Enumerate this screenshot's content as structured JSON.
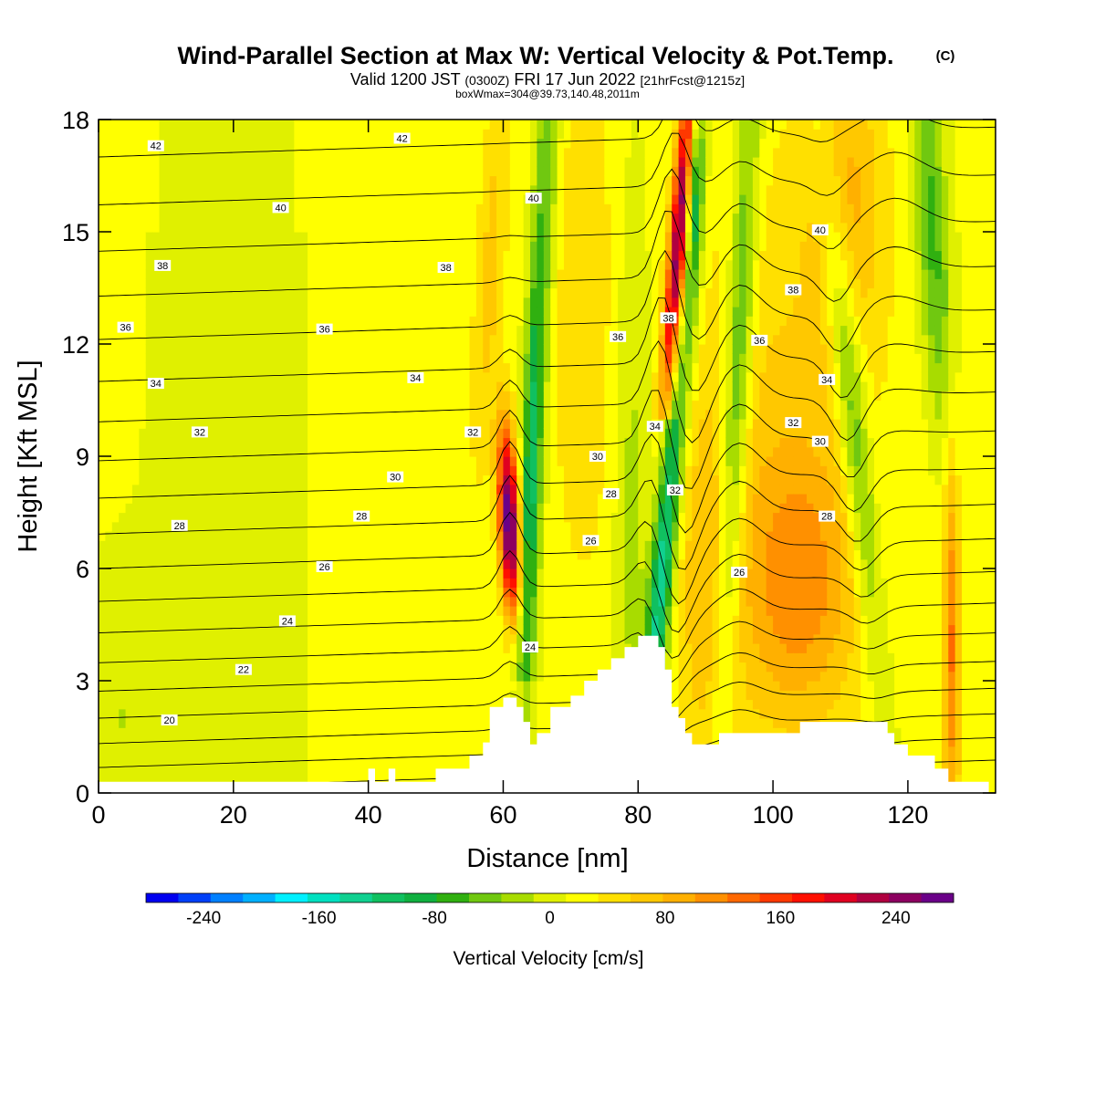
{
  "title": {
    "main": "Wind-Parallel Section at Max W: Vertical Velocity & Pot.Temp.",
    "main_mark": "(C)",
    "valid_prefix": "Valid 1200 JST",
    "valid_utc": "(0300Z)",
    "valid_date": "FRI 17 Jun 2022",
    "forecast": "[21hrFcst@1215z]",
    "box": "boxWmax=304@39.73,140.48,2011m"
  },
  "chart_data": {
    "type": "heatmap",
    "xlabel": "Distance [nm]",
    "ylabel": "Height [Kft MSL]",
    "xlim": [
      0,
      133
    ],
    "ylim": [
      0,
      18
    ],
    "x_ticks": [
      "0",
      "20",
      "40",
      "60",
      "80",
      "100",
      "120"
    ],
    "x_tick_values": [
      0,
      20,
      40,
      60,
      80,
      100,
      120
    ],
    "y_ticks": [
      "0",
      "3",
      "6",
      "9",
      "12",
      "15",
      "18"
    ],
    "y_tick_values": [
      0,
      3,
      6,
      9,
      12,
      15,
      18
    ],
    "colorbar": {
      "title": "Vertical Velocity [cm/s]",
      "labels": [
        "-240",
        "-160",
        "-80",
        "0",
        "80",
        "160",
        "240"
      ],
      "label_values": [
        -240,
        -160,
        -80,
        0,
        80,
        160,
        240
      ],
      "range": [
        -280,
        280
      ],
      "colors": [
        "#0000f0",
        "#0040f8",
        "#0080ff",
        "#00b0ff",
        "#00f0ff",
        "#00e0c0",
        "#10d090",
        "#10c060",
        "#10b040",
        "#30b010",
        "#70c810",
        "#a8dc00",
        "#e0f000",
        "#ffff00",
        "#ffe000",
        "#ffc800",
        "#ffb000",
        "#ff9000",
        "#ff6800",
        "#ff3800",
        "#ff1000",
        "#e00020",
        "#b00040",
        "#8c0060",
        "#6a0088"
      ]
    },
    "contour_labels": [
      {
        "text": "42",
        "x": 8.5,
        "y": 17.3
      },
      {
        "text": "42",
        "x": 45,
        "y": 17.5
      },
      {
        "text": "40",
        "x": 27,
        "y": 15.65
      },
      {
        "text": "40",
        "x": 64.5,
        "y": 15.9
      },
      {
        "text": "40",
        "x": 107,
        "y": 15.05
      },
      {
        "text": "38",
        "x": 9.5,
        "y": 14.1
      },
      {
        "text": "38",
        "x": 51.5,
        "y": 14.05
      },
      {
        "text": "38",
        "x": 103,
        "y": 13.45
      },
      {
        "text": "38",
        "x": 84.5,
        "y": 12.7
      },
      {
        "text": "36",
        "x": 4,
        "y": 12.45
      },
      {
        "text": "36",
        "x": 33.5,
        "y": 12.4
      },
      {
        "text": "36",
        "x": 77,
        "y": 12.2
      },
      {
        "text": "36",
        "x": 98,
        "y": 12.1
      },
      {
        "text": "34",
        "x": 8.5,
        "y": 10.95
      },
      {
        "text": "34",
        "x": 47,
        "y": 11.1
      },
      {
        "text": "34",
        "x": 108,
        "y": 11.05
      },
      {
        "text": "34",
        "x": 82.5,
        "y": 9.8
      },
      {
        "text": "32",
        "x": 15,
        "y": 9.65
      },
      {
        "text": "32",
        "x": 55.5,
        "y": 9.65
      },
      {
        "text": "32",
        "x": 103,
        "y": 9.9
      },
      {
        "text": "32",
        "x": 85.5,
        "y": 8.1
      },
      {
        "text": "30",
        "x": 44,
        "y": 8.45
      },
      {
        "text": "30",
        "x": 74,
        "y": 9.0
      },
      {
        "text": "30",
        "x": 107,
        "y": 9.4
      },
      {
        "text": "28",
        "x": 12,
        "y": 7.15
      },
      {
        "text": "28",
        "x": 39,
        "y": 7.4
      },
      {
        "text": "28",
        "x": 76,
        "y": 8.0
      },
      {
        "text": "28",
        "x": 108,
        "y": 7.4
      },
      {
        "text": "26",
        "x": 33.5,
        "y": 6.05
      },
      {
        "text": "26",
        "x": 73,
        "y": 6.75
      },
      {
        "text": "26",
        "x": 95,
        "y": 5.9
      },
      {
        "text": "24",
        "x": 28,
        "y": 4.6
      },
      {
        "text": "24",
        "x": 64,
        "y": 3.9
      },
      {
        "text": "22",
        "x": 21.5,
        "y": 3.3
      },
      {
        "text": "20",
        "x": 10.5,
        "y": 1.95
      }
    ]
  }
}
